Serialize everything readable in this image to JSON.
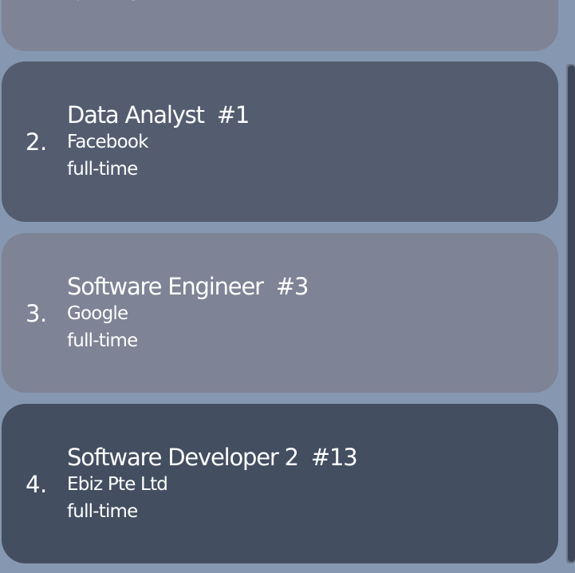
{
  "colors": {
    "background": "#8698b1",
    "card_light": "#7e8395",
    "card_mid": "#545d70",
    "card_dark": "#434e60",
    "scrollbar_thumb": "#3e4759"
  },
  "jobs": [
    {
      "sub2": "full-time"
    },
    {
      "index": "2.",
      "title": "Data Analyst  #1",
      "company": "Facebook",
      "type": "full-time"
    },
    {
      "index": "3.",
      "title": "Software Engineer  #3",
      "company": "Google",
      "type": "full-time"
    },
    {
      "index": "4.",
      "title": "Software Developer 2  #13",
      "company": "Ebiz Pte Ltd",
      "type": "full-time"
    }
  ]
}
